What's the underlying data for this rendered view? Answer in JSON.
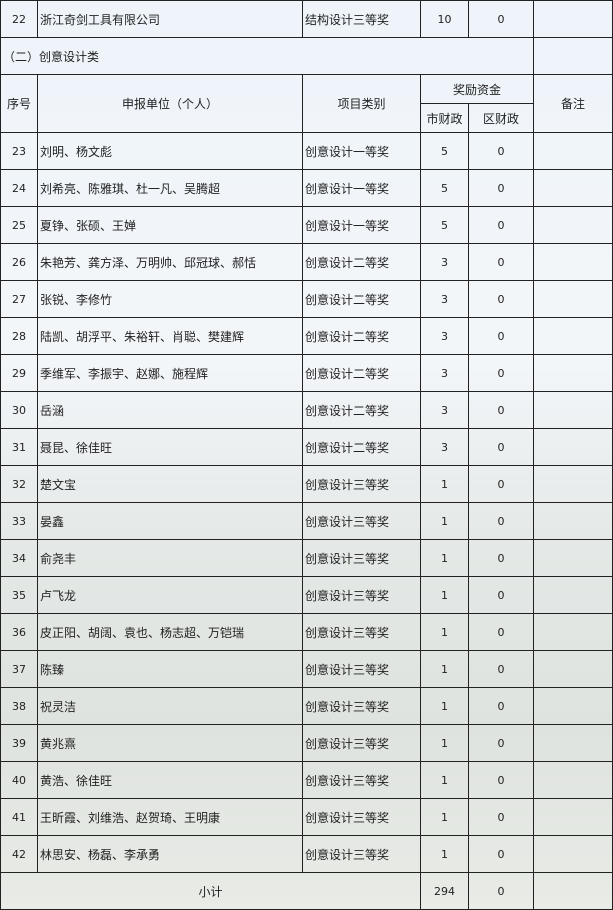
{
  "top_row": {
    "no": "22",
    "unit": "浙江奇剑工具有限公司",
    "category": "结构设计三等奖",
    "city": "10",
    "district": "0"
  },
  "section_title": "（二）创意设计类",
  "headers": {
    "no": "序号",
    "unit": "申报单位（个人）",
    "category": "项目类别",
    "fund": "奖励资金",
    "city": "市财政",
    "district": "区财政",
    "remark": "备注"
  },
  "rows": [
    {
      "no": "23",
      "unit": "刘明、杨文彪",
      "category": "创意设计一等奖",
      "city": "5",
      "district": "0"
    },
    {
      "no": "24",
      "unit": "刘希亮、陈雅琪、杜一凡、吴腾超",
      "category": "创意设计一等奖",
      "city": "5",
      "district": "0"
    },
    {
      "no": "25",
      "unit": "夏铮、张硕、王婵",
      "category": "创意设计一等奖",
      "city": "5",
      "district": "0"
    },
    {
      "no": "26",
      "unit": "朱艳芳、龚方泽、万明帅、邱冠球、郝恬",
      "category": "创意设计二等奖",
      "city": "3",
      "district": "0"
    },
    {
      "no": "27",
      "unit": "张锐、李修竹",
      "category": "创意设计二等奖",
      "city": "3",
      "district": "0"
    },
    {
      "no": "28",
      "unit": "陆凯、胡浮平、朱裕轩、肖聪、樊建辉",
      "category": "创意设计二等奖",
      "city": "3",
      "district": "0"
    },
    {
      "no": "29",
      "unit": "季维军、李振宇、赵娜、施程辉",
      "category": "创意设计二等奖",
      "city": "3",
      "district": "0"
    },
    {
      "no": "30",
      "unit": "岳涵",
      "category": "创意设计二等奖",
      "city": "3",
      "district": "0"
    },
    {
      "no": "31",
      "unit": "聂昆、徐佳旺",
      "category": "创意设计二等奖",
      "city": "3",
      "district": "0"
    },
    {
      "no": "32",
      "unit": "楚文宝",
      "category": "创意设计三等奖",
      "city": "1",
      "district": "0"
    },
    {
      "no": "33",
      "unit": "晏鑫",
      "category": "创意设计三等奖",
      "city": "1",
      "district": "0"
    },
    {
      "no": "34",
      "unit": "俞尧丰",
      "category": "创意设计三等奖",
      "city": "1",
      "district": "0"
    },
    {
      "no": "35",
      "unit": "卢飞龙",
      "category": "创意设计三等奖",
      "city": "1",
      "district": "0"
    },
    {
      "no": "36",
      "unit": "皮正阳、胡阔、袁也、杨志超、万铠瑞",
      "category": "创意设计三等奖",
      "city": "1",
      "district": "0"
    },
    {
      "no": "37",
      "unit": "陈臻",
      "category": "创意设计三等奖",
      "city": "1",
      "district": "0"
    },
    {
      "no": "38",
      "unit": "祝灵洁",
      "category": "创意设计三等奖",
      "city": "1",
      "district": "0"
    },
    {
      "no": "39",
      "unit": "黄兆熹",
      "category": "创意设计三等奖",
      "city": "1",
      "district": "0"
    },
    {
      "no": "40",
      "unit": "黄浩、徐佳旺",
      "category": "创意设计三等奖",
      "city": "1",
      "district": "0"
    },
    {
      "no": "41",
      "unit": "王昕霞、刘维浩、赵贺琦、王明康",
      "category": "创意设计三等奖",
      "city": "1",
      "district": "0"
    },
    {
      "no": "42",
      "unit": "林思安、杨磊、李承勇",
      "category": "创意设计三等奖",
      "city": "1",
      "district": "0"
    }
  ],
  "subtotal": {
    "label": "小计",
    "city": "294",
    "district": "0"
  }
}
